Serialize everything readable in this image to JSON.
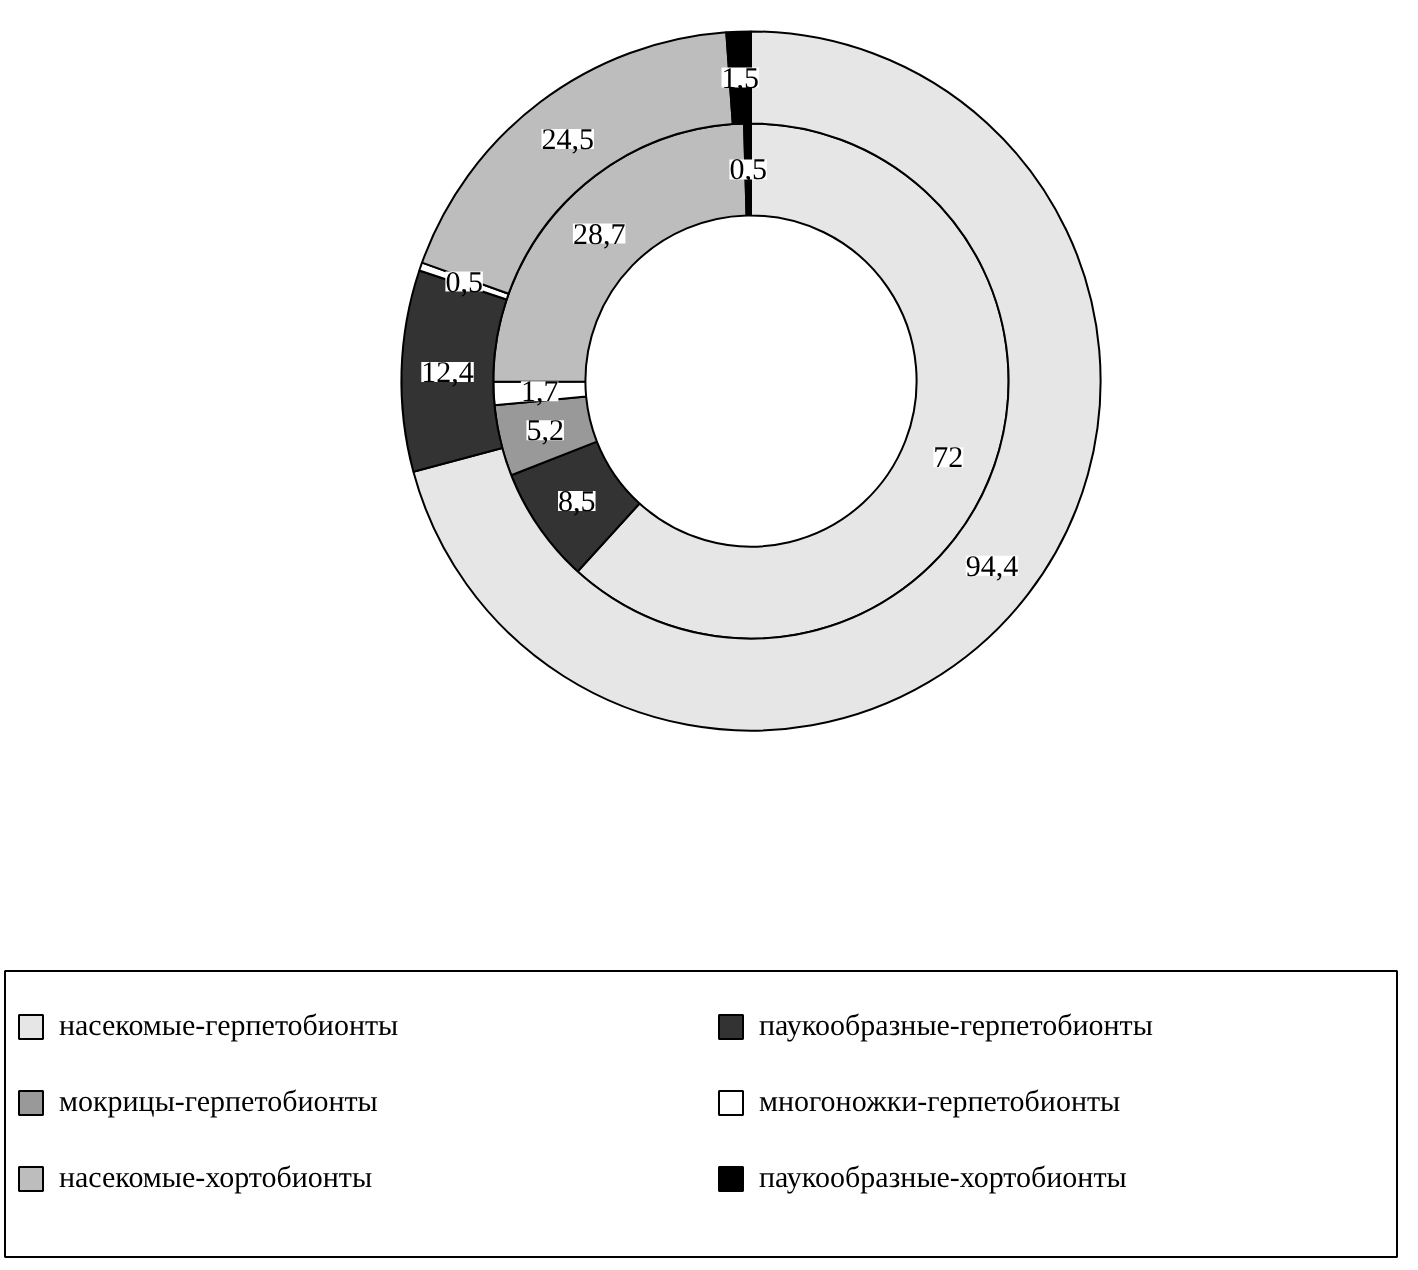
{
  "chart_data": {
    "type": "donut",
    "categories": [
      "насекомые-герпетобионты",
      "паукообразные-герпетобионты",
      "мокрицы-герпетобионты",
      "многоножки-герпетобионты",
      "насекомые-хортобионты",
      "паукообразные-хортобионты"
    ],
    "colors": [
      "#e6e6e6",
      "#333333",
      "#999999",
      "#ffffff",
      "#bdbdbd",
      "#000000"
    ],
    "series": [
      {
        "values": [
          72,
          8.5,
          5.2,
          1.7,
          28.7,
          0.5
        ],
        "value_labels": [
          "72",
          "8,5",
          "5,2",
          "1,7",
          "28,7",
          "0,5"
        ]
      },
      {
        "values": [
          94.4,
          12.4,
          null,
          0.5,
          24.5,
          1.5
        ],
        "value_labels": [
          "94,4",
          "12,4",
          null,
          "0,5",
          "24,5",
          "1,5"
        ]
      }
    ],
    "legend": "bottom"
  }
}
